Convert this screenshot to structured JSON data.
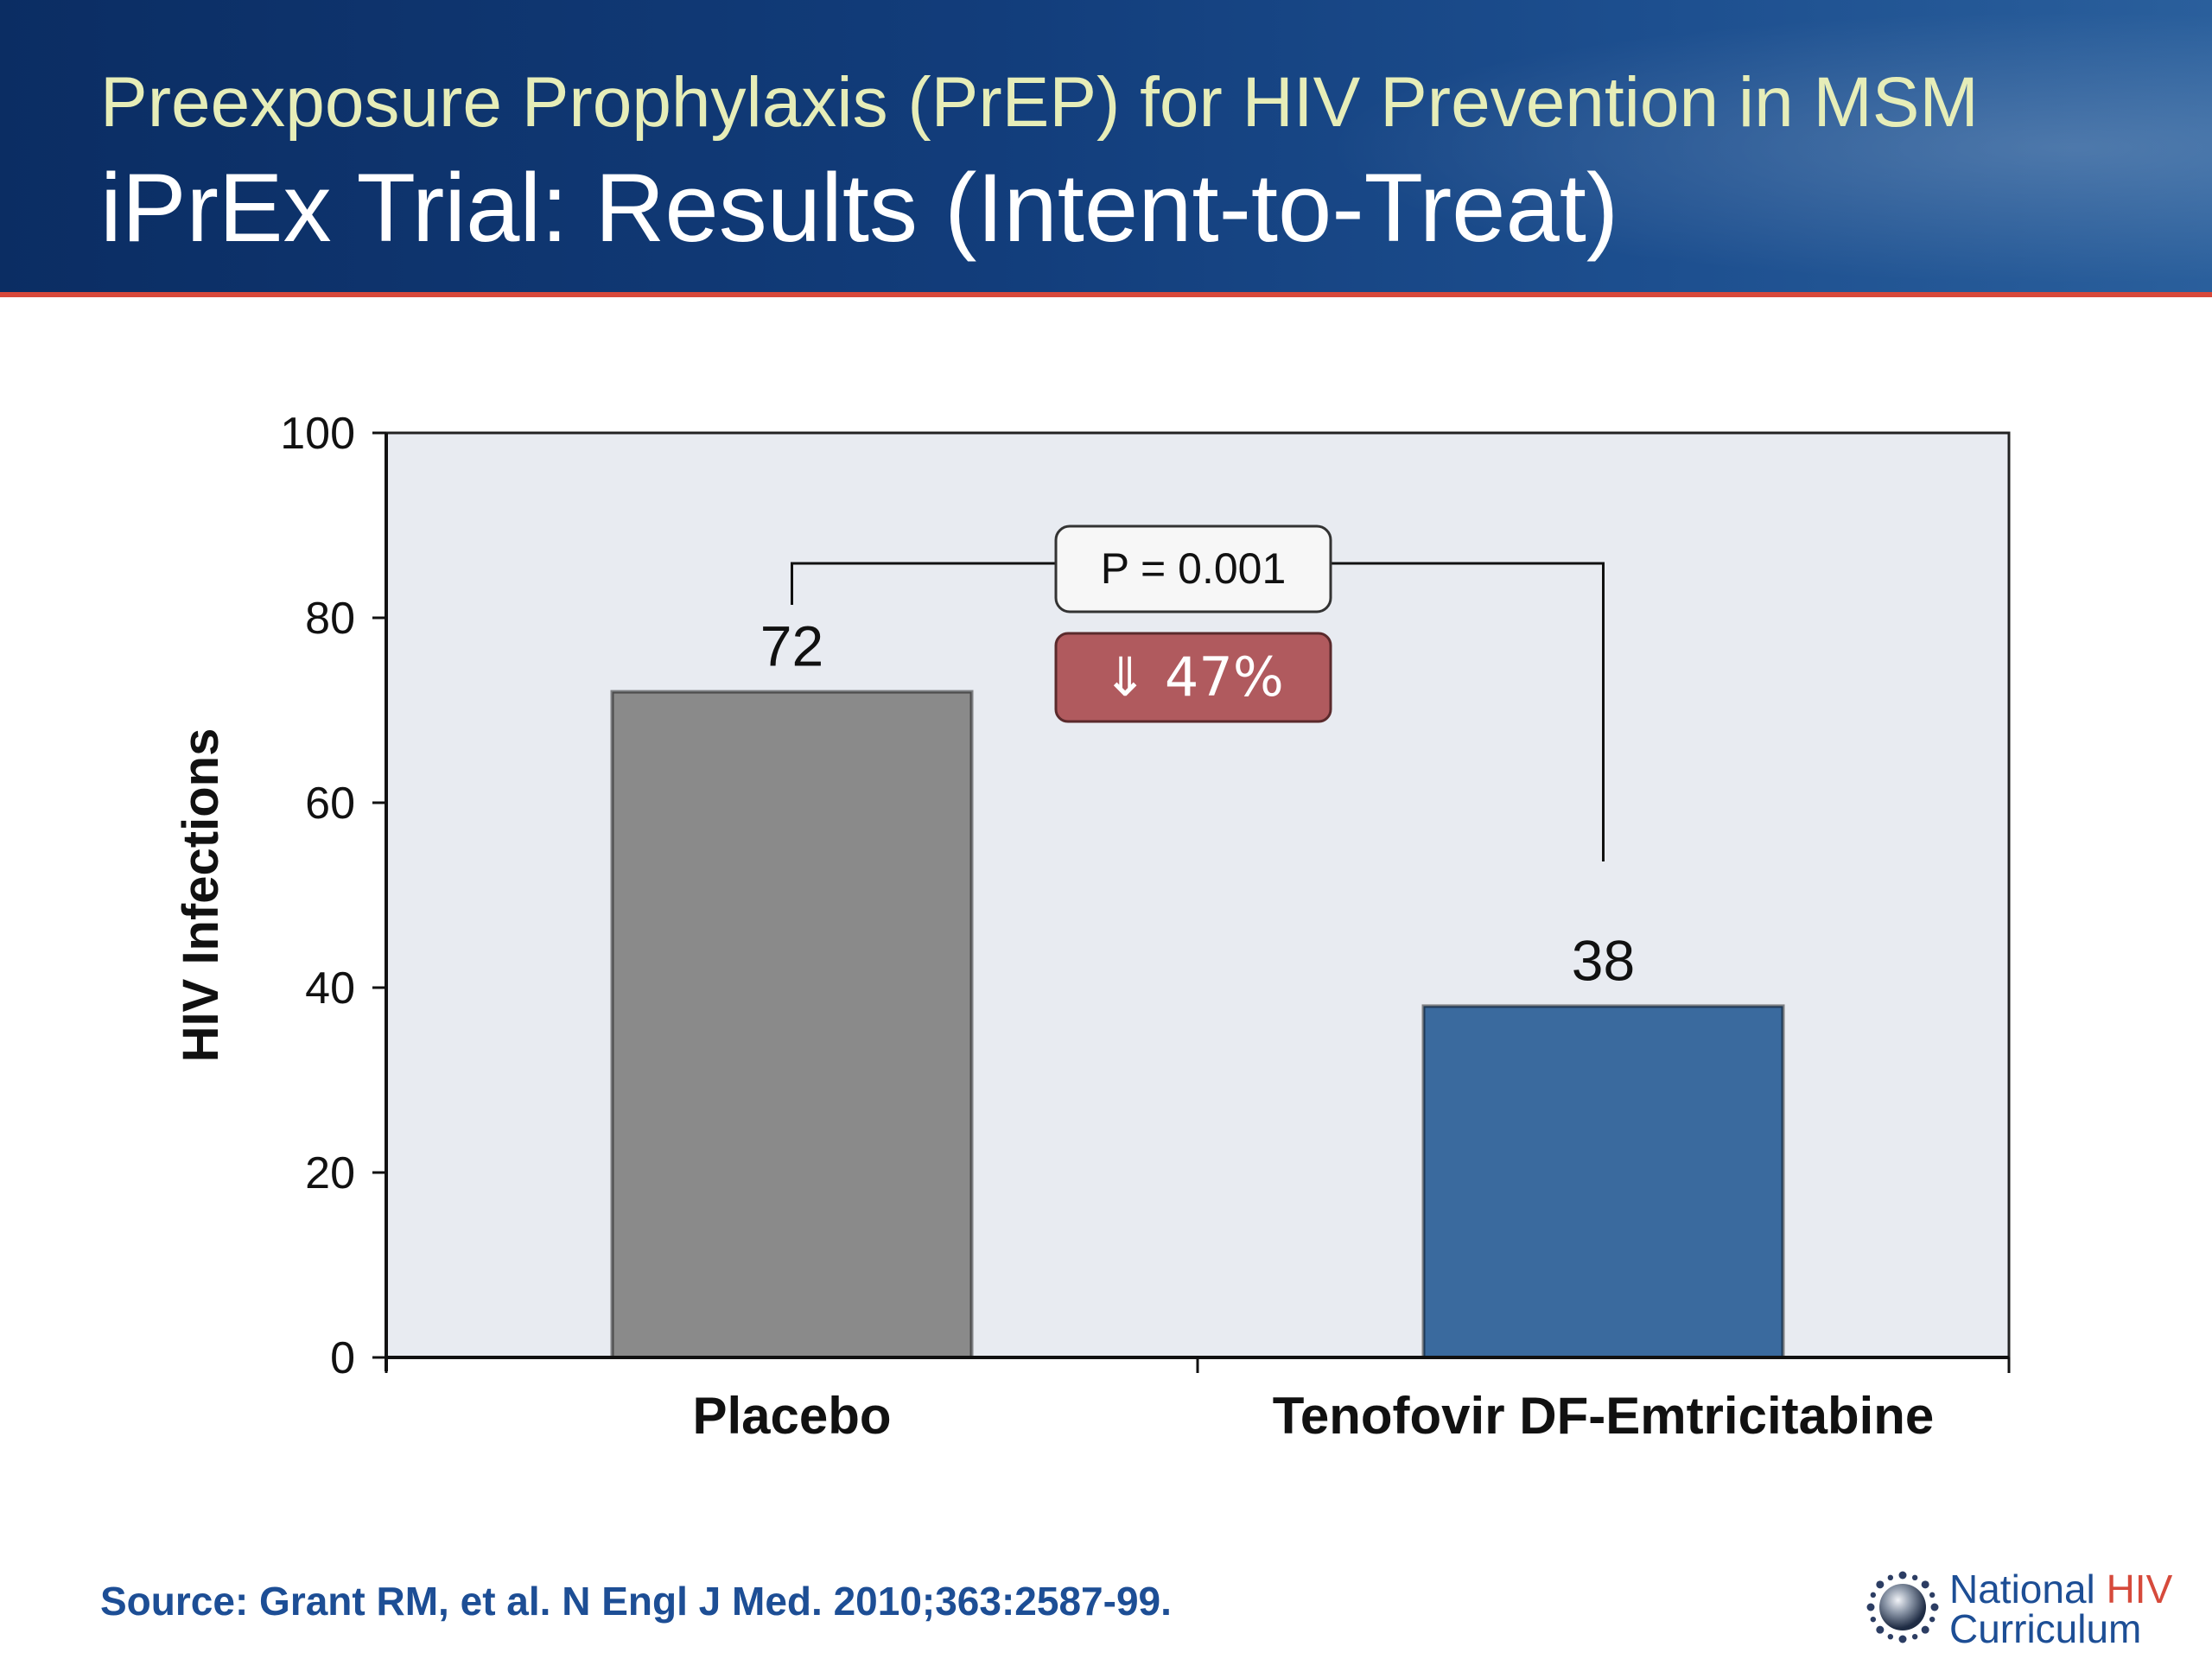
{
  "slide": {
    "subtitle": "Preexposure Prophylaxis (PrEP) for HIV Prevention in MSM",
    "title": "iPrEx Trial: Results (Intent-to-Treat)",
    "source": "Source: Grant RM, et al.  N Engl J Med. 2010;363:2587-99.",
    "logo": {
      "line1_a": "National ",
      "line1_b": "HIV",
      "line2": "Curriculum"
    }
  },
  "chart_data": {
    "type": "bar",
    "categories": [
      "Placebo",
      "Tenofovir DF-Emtricitabine"
    ],
    "values": [
      72,
      38
    ],
    "data_labels": [
      "72",
      "38"
    ],
    "bar_colors": [
      "#8a8a8a",
      "#3a6a9e"
    ],
    "ylabel": "HIV Infections",
    "ylim": [
      0,
      100
    ],
    "yticks": [
      0,
      20,
      40,
      60,
      80,
      100
    ],
    "plot_background": "#e8ebf1",
    "grid": false,
    "annotations": {
      "p_value": "P = 0.001",
      "reduction": "⇓ 47%",
      "reduction_color": "#b05a5e"
    }
  }
}
